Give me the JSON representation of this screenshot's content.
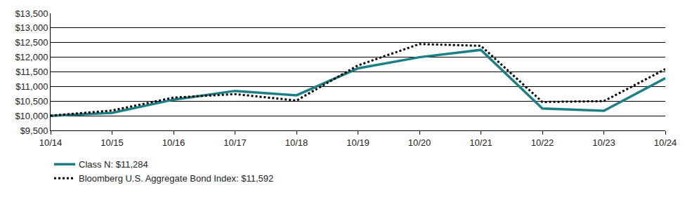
{
  "chart_data": {
    "type": "line",
    "categories": [
      "10/14",
      "10/15",
      "10/16",
      "10/17",
      "10/18",
      "10/19",
      "10/20",
      "10/21",
      "10/22",
      "10/23",
      "10/24"
    ],
    "series": [
      {
        "name": "Class N: $11,284",
        "color": "#1b7f86",
        "line_style": "solid",
        "values": [
          10000,
          10100,
          10550,
          10850,
          10700,
          11620,
          12000,
          12250,
          10250,
          10170,
          11284
        ]
      },
      {
        "name": "Bloomberg U.S. Aggregate Bond Index: $11,592",
        "color": "#000000",
        "line_style": "dot",
        "values": [
          10000,
          10180,
          10620,
          10740,
          10520,
          11720,
          12450,
          12390,
          10470,
          10500,
          11592
        ]
      }
    ],
    "ylim": [
      9500,
      13500
    ],
    "yticks": [
      {
        "value": 9500,
        "label": "$9,500"
      },
      {
        "value": 10000,
        "label": "$10,000"
      },
      {
        "value": 10500,
        "label": "$10,500"
      },
      {
        "value": 11000,
        "label": "$11,000"
      },
      {
        "value": 11500,
        "label": "$11,500"
      },
      {
        "value": 12000,
        "label": "$12,000"
      },
      {
        "value": 12500,
        "label": "$12,500"
      },
      {
        "value": 13000,
        "label": "$13,000"
      },
      {
        "value": 13500,
        "label": "$13,500"
      }
    ],
    "grid": true,
    "legend": "bottom left"
  }
}
